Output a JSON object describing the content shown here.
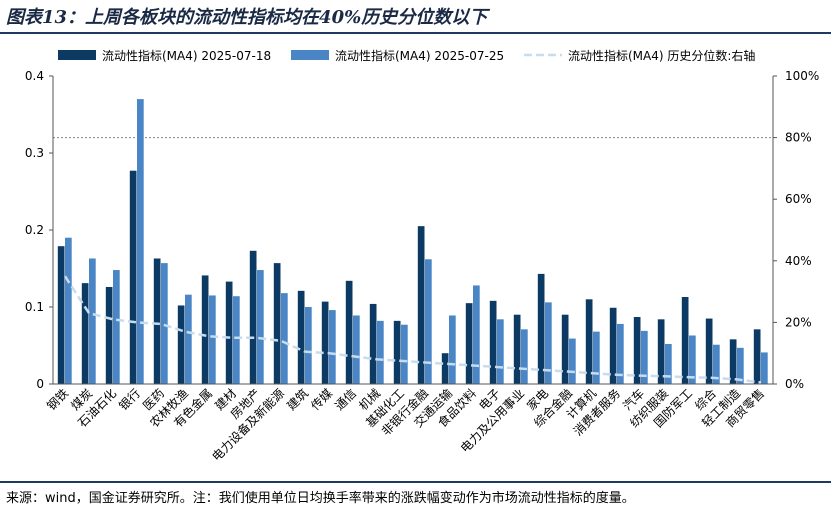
{
  "title": "图表13：上周各板块的流动性指标均在40%历史分位数以下",
  "source": "来源：wind，国金证券研究所。注：我们使用单位日均换手率带来的涨跌幅变动作为市场流动性指标的度量。",
  "chart_data": {
    "type": "bar",
    "categories": [
      "钢铁",
      "煤炭",
      "石油石化",
      "银行",
      "医药",
      "农林牧渔",
      "有色金属",
      "建材",
      "房地产",
      "电力设备及新能源",
      "建筑",
      "传媒",
      "通信",
      "机械",
      "基础化工",
      "非银行金融",
      "交通运输",
      "食品饮料",
      "电子",
      "电力及公用事业",
      "家电",
      "综合金融",
      "计算机",
      "消费者服务",
      "汽车",
      "纺织服装",
      "国防军工",
      "综合",
      "轻工制造",
      "商贸零售"
    ],
    "series": [
      {
        "name": "流动性指标(MA4) 2025-07-18",
        "axis": "left",
        "color": "#0d3a63",
        "values": [
          0.179,
          0.131,
          0.126,
          0.277,
          0.163,
          0.102,
          0.141,
          0.133,
          0.173,
          0.157,
          0.121,
          0.107,
          0.134,
          0.104,
          0.082,
          0.205,
          0.04,
          0.105,
          0.108,
          0.09,
          0.143,
          0.09,
          0.11,
          0.099,
          0.087,
          0.084,
          0.113,
          0.085,
          0.058,
          0.071
        ]
      },
      {
        "name": "流动性指标(MA4) 2025-07-25",
        "axis": "left",
        "color": "#4a86c5",
        "values": [
          0.19,
          0.163,
          0.148,
          0.37,
          0.157,
          0.116,
          0.115,
          0.114,
          0.148,
          0.118,
          0.1,
          0.096,
          0.089,
          0.082,
          0.077,
          0.162,
          0.089,
          0.128,
          0.084,
          0.071,
          0.106,
          0.059,
          0.068,
          0.078,
          0.069,
          0.052,
          0.063,
          0.051,
          0.047,
          0.041
        ]
      },
      {
        "name": "流动性指标(MA4) 历史分位数:右轴",
        "axis": "right",
        "type": "line",
        "style": "dashed",
        "color": "#c7dcee",
        "values": [
          35,
          23,
          21,
          20,
          19.5,
          17,
          15.5,
          15,
          15,
          14,
          10.5,
          10,
          9,
          8,
          7.5,
          7,
          6.5,
          6,
          5.5,
          5,
          4.5,
          4,
          3.5,
          3,
          2.7,
          2.5,
          2.2,
          2,
          1.5,
          0.5
        ]
      }
    ],
    "ylim": [
      0,
      0.4
    ],
    "yticks": [
      "0",
      "0.1",
      "0.2",
      "0.3",
      "0.4"
    ],
    "y2lim": [
      0,
      100
    ],
    "y2ticks": [
      "0%",
      "20%",
      "40%",
      "60%",
      "80%",
      "100%"
    ],
    "reference_line": {
      "axis": "right",
      "value": 80,
      "style": "dotted",
      "color": "#888888"
    },
    "legend": "top"
  }
}
